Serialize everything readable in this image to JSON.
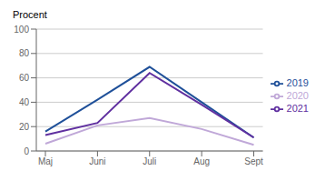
{
  "chart_data": {
    "type": "line",
    "ylabel": "Procent",
    "categories": [
      "Maj",
      "Juni",
      "Juli",
      "Aug",
      "Sept"
    ],
    "series": [
      {
        "name": "2019",
        "color": "#1f5099",
        "values": [
          16,
          42,
          69,
          40,
          11
        ]
      },
      {
        "name": "2021",
        "color": "#6030a0",
        "values": [
          13,
          23,
          64,
          38,
          11
        ]
      },
      {
        "name": "2020",
        "color": "#c0a8d8",
        "values": [
          6,
          21,
          27,
          18,
          5
        ]
      }
    ],
    "ylim": [
      0,
      100
    ],
    "yticks": [
      0,
      20,
      40,
      60,
      80,
      100
    ],
    "grid": true,
    "legend": "right"
  }
}
